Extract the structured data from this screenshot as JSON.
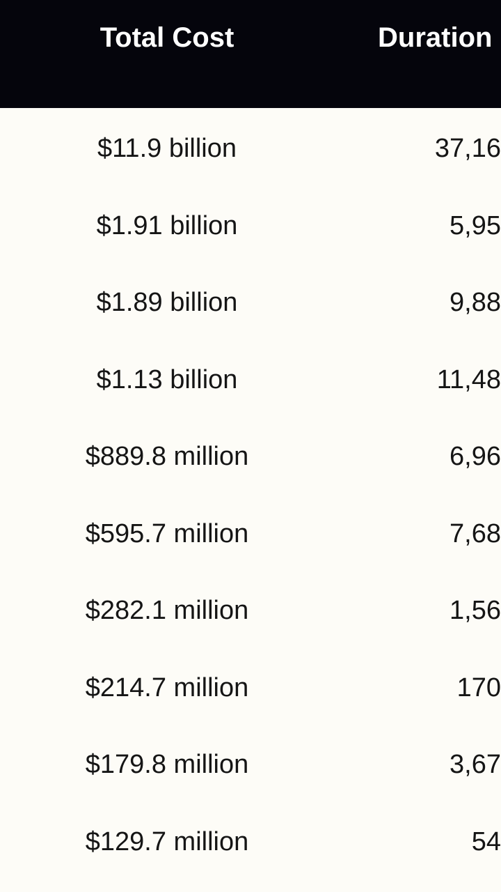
{
  "table": {
    "headers": [
      "Total Cost",
      "Duration"
    ],
    "rows": [
      {
        "cost": "$11.9 billion",
        "duration": "37,16"
      },
      {
        "cost": "$1.91 billion",
        "duration": "5,95"
      },
      {
        "cost": "$1.89 billion",
        "duration": "9,88"
      },
      {
        "cost": "$1.13 billion",
        "duration": "11,48"
      },
      {
        "cost": "$889.8 million",
        "duration": "6,96"
      },
      {
        "cost": "$595.7 million",
        "duration": "7,68"
      },
      {
        "cost": "$282.1 million",
        "duration": "1,56"
      },
      {
        "cost": "$214.7 million",
        "duration": "170"
      },
      {
        "cost": "$179.8 million",
        "duration": "3,67"
      },
      {
        "cost": "$129.7 million",
        "duration": "54"
      }
    ]
  },
  "colors": {
    "header_bg": "#05050c",
    "header_text": "#ffffff",
    "body_bg": "#fdfcf7",
    "body_text": "#151515"
  }
}
